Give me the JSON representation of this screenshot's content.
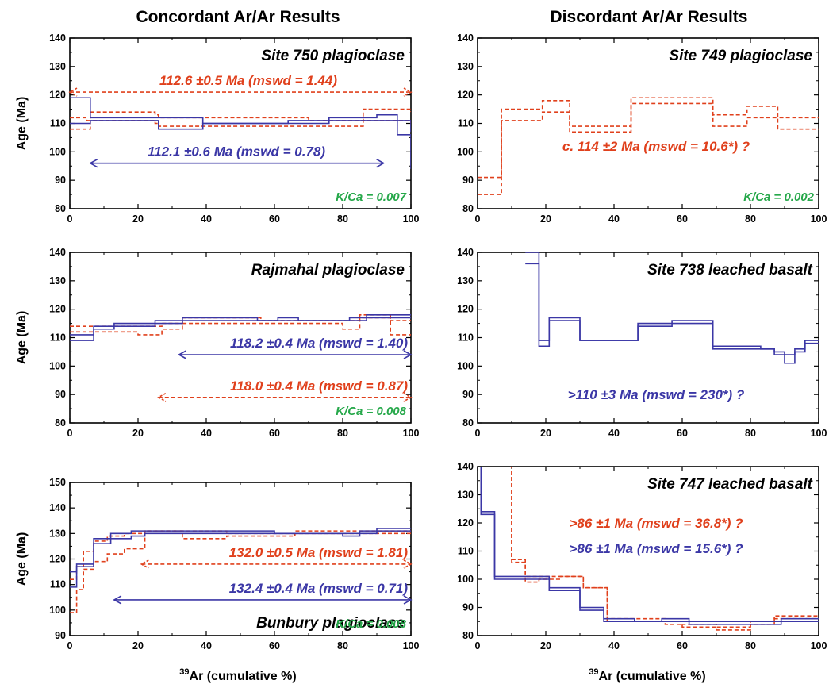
{
  "column_titles": [
    "Concordant Ar/Ar Results",
    "Discordant Ar/Ar Results"
  ],
  "shared_xlabel": {
    "sup": "39",
    "main": "Ar (cumulative %)"
  },
  "colors": {
    "red": "#e0401c",
    "blue": "#3b37a6",
    "green": "#26a84a"
  },
  "chart_data": [
    {
      "type": "line",
      "title": "Site 750 plagioclase",
      "ylabel": "Age (Ma)",
      "xlim": [
        0,
        100
      ],
      "ylim": [
        80,
        140
      ],
      "xticks": [
        0,
        20,
        40,
        60,
        80,
        100
      ],
      "yticks": [
        80,
        90,
        100,
        110,
        120,
        130,
        140
      ],
      "kca": "K/Ca = 0.007",
      "series": [
        {
          "color": "red",
          "dash": true,
          "x": [
            0,
            5,
            6,
            25,
            26,
            70,
            85,
            86,
            100
          ],
          "y_upper": [
            112,
            111,
            114,
            113,
            112,
            111,
            111,
            115,
            114
          ],
          "y_lower": [
            108,
            108,
            111,
            110,
            109,
            109,
            109,
            111,
            110
          ]
        },
        {
          "color": "blue",
          "dash": false,
          "x": [
            0,
            6,
            20,
            26,
            39,
            64,
            76,
            90,
            96,
            100
          ],
          "y_upper": [
            119,
            112,
            112,
            112,
            110,
            111,
            112,
            113,
            111,
            107
          ],
          "y_lower": [
            110,
            111,
            111,
            108,
            110,
            110,
            111,
            111,
            106,
            94
          ]
        }
      ],
      "plateaus": [
        {
          "label": "112.6 ±0.5 Ma (mswd = 1.44)",
          "color": "red",
          "dashed": true,
          "x_start": 0,
          "x_end": 100,
          "y": 121
        },
        {
          "label": "112.1 ±0.6 Ma (mswd = 0.78)",
          "color": "blue",
          "dashed": false,
          "x_start": 6,
          "x_end": 92,
          "y": 96
        }
      ]
    },
    {
      "type": "line",
      "title": "Site 749 plagioclase",
      "ylabel": "",
      "xlim": [
        0,
        100
      ],
      "ylim": [
        80,
        140
      ],
      "xticks": [
        0,
        20,
        40,
        60,
        80,
        100
      ],
      "yticks": [
        80,
        90,
        100,
        110,
        120,
        130,
        140
      ],
      "kca": "K/Ca = 0.002",
      "series": [
        {
          "color": "red",
          "dash": true,
          "x": [
            0,
            7,
            19,
            27,
            45,
            69,
            79,
            88,
            100
          ],
          "y_upper": [
            91,
            115,
            118,
            109,
            119,
            113,
            116,
            112,
            112
          ],
          "y_lower": [
            85,
            111,
            114,
            107,
            117,
            109,
            112,
            108,
            108
          ]
        }
      ],
      "plateaus": [],
      "annotations": [
        {
          "label": "c. 114 ±2 Ma  (mswd = 10.6*) ?",
          "color": "red",
          "y": 102
        }
      ]
    },
    {
      "type": "line",
      "title": "Rajmahal plagioclase",
      "ylabel": "Age (Ma)",
      "xlim": [
        0,
        100
      ],
      "ylim": [
        80,
        140
      ],
      "xticks": [
        0,
        20,
        40,
        60,
        80,
        100
      ],
      "yticks": [
        80,
        90,
        100,
        110,
        120,
        130,
        140
      ],
      "kca": "K/Ca = 0.008",
      "series": [
        {
          "color": "red",
          "dash": true,
          "x": [
            0,
            8,
            13,
            20,
            27,
            33,
            56,
            64,
            80,
            85,
            89,
            94,
            100
          ],
          "y_upper": [
            114,
            114,
            114,
            114,
            115,
            117,
            116,
            116,
            116,
            118,
            118,
            116,
            116
          ],
          "y_lower": [
            112,
            112,
            112,
            111,
            113,
            115,
            115,
            115,
            113,
            117,
            117,
            111,
            111
          ]
        },
        {
          "color": "blue",
          "dash": false,
          "x": [
            0,
            7,
            13,
            20,
            25,
            33,
            39,
            55,
            61,
            67,
            82,
            87,
            92,
            100
          ],
          "y_upper": [
            111,
            114,
            115,
            115,
            116,
            117,
            117,
            116,
            117,
            116,
            117,
            118,
            118,
            118
          ],
          "y_lower": [
            109,
            113,
            114,
            114,
            115,
            116,
            116,
            116,
            116,
            116,
            116,
            117,
            117,
            117
          ]
        }
      ],
      "plateaus": [
        {
          "label": "118.2 ±0.4 Ma (mswd = 1.40)",
          "color": "blue",
          "dashed": false,
          "x_start": 32,
          "x_end": 100,
          "y": 104
        },
        {
          "label": "118.0 ±0.4 Ma (mswd = 0.87)",
          "color": "red",
          "dashed": true,
          "x_start": 26,
          "x_end": 100,
          "y": 89
        }
      ]
    },
    {
      "type": "line",
      "title": "Site 738 leached basalt",
      "ylabel": "",
      "xlim": [
        0,
        100
      ],
      "ylim": [
        80,
        140
      ],
      "xticks": [
        0,
        20,
        40,
        60,
        80,
        100
      ],
      "yticks": [
        80,
        90,
        100,
        110,
        120,
        130,
        140
      ],
      "series": [
        {
          "color": "blue",
          "dash": false,
          "x": [
            14,
            18,
            21,
            30,
            47,
            57,
            69,
            83,
            87,
            90,
            93,
            96,
            100
          ],
          "y_upper": [
            140,
            109,
            117,
            109,
            115,
            116,
            107,
            106,
            105,
            104,
            106,
            109,
            109
          ],
          "y_lower": [
            136,
            107,
            116,
            109,
            114,
            115,
            106,
            106,
            104,
            101,
            105,
            108,
            108
          ]
        }
      ],
      "plateaus": [],
      "annotations": [
        {
          "label": ">110 ±3 Ma (mswd = 230*) ?",
          "color": "blue",
          "y": 90
        }
      ]
    },
    {
      "type": "line",
      "title": "Bunbury plagioclase",
      "ylabel": "Age (Ma)",
      "xlim": [
        0,
        100
      ],
      "ylim": [
        90,
        150
      ],
      "xticks": [
        0,
        20,
        40,
        60,
        80,
        100
      ],
      "yticks": [
        90,
        100,
        110,
        120,
        130,
        140,
        150
      ],
      "kca": "K/Ca = 0.008",
      "series": [
        {
          "color": "red",
          "dash": true,
          "x": [
            0,
            2,
            4,
            7,
            11,
            16,
            22,
            33,
            46,
            66,
            72,
            87,
            100
          ],
          "y_upper": [
            112,
            117,
            123,
            127,
            129,
            130,
            131,
            131,
            130,
            131,
            131,
            131,
            131
          ],
          "y_lower": [
            99,
            108,
            116,
            119,
            122,
            124,
            131,
            128,
            129,
            130,
            130,
            130,
            130
          ]
        },
        {
          "color": "blue",
          "dash": false,
          "x": [
            0,
            2,
            7,
            12,
            18,
            22,
            40,
            60,
            80,
            85,
            90,
            100
          ],
          "y_upper": [
            115,
            118,
            128,
            130,
            131,
            131,
            131,
            130,
            130,
            131,
            132,
            132
          ],
          "y_lower": [
            109,
            117,
            126,
            128,
            129,
            130,
            130,
            130,
            129,
            130,
            131,
            131
          ]
        }
      ],
      "plateaus": [
        {
          "label": "132.0 ±0.5 Ma (mswd = 1.81)",
          "color": "red",
          "dashed": true,
          "x_start": 21,
          "x_end": 100,
          "y": 118
        },
        {
          "label": "132.4 ±0.4 Ma (mswd = 0.71)",
          "color": "blue",
          "dashed": false,
          "x_start": 13,
          "x_end": 100,
          "y": 104
        }
      ]
    },
    {
      "type": "line",
      "title": "Site 747 leached basalt",
      "ylabel": "",
      "xlim": [
        0,
        100
      ],
      "ylim": [
        80,
        140
      ],
      "xticks": [
        0,
        20,
        40,
        60,
        80,
        100
      ],
      "yticks": [
        80,
        90,
        100,
        110,
        120,
        130,
        140
      ],
      "series": [
        {
          "color": "red",
          "dash": true,
          "x": [
            0,
            8,
            10,
            14,
            18,
            24,
            31,
            38,
            55,
            60,
            70,
            80,
            87,
            100
          ],
          "y_upper": [
            140,
            140,
            107,
            101,
            101,
            101,
            97,
            86,
            85,
            84,
            83,
            85,
            87,
            87
          ],
          "y_lower": [
            140,
            140,
            106,
            99,
            100,
            101,
            97,
            85,
            84,
            83,
            82,
            84,
            86,
            86
          ]
        },
        {
          "color": "blue",
          "dash": false,
          "x": [
            0,
            1,
            5,
            15,
            21,
            30,
            37,
            46,
            54,
            62,
            70,
            78,
            89,
            100
          ],
          "y_upper": [
            140,
            124,
            101,
            101,
            97,
            90,
            86,
            85,
            86,
            85,
            85,
            85,
            86,
            86
          ],
          "y_lower": [
            140,
            123,
            100,
            100,
            96,
            89,
            85,
            85,
            85,
            84,
            84,
            84,
            85,
            85
          ]
        }
      ],
      "plateaus": [],
      "annotations": [
        {
          "label": ">86 ±1 Ma (mswd = 36.8*) ?",
          "color": "red",
          "y": 120
        },
        {
          "label": ">86 ±1 Ma (mswd = 15.6*) ?",
          "color": "blue",
          "y": 111
        }
      ]
    }
  ]
}
